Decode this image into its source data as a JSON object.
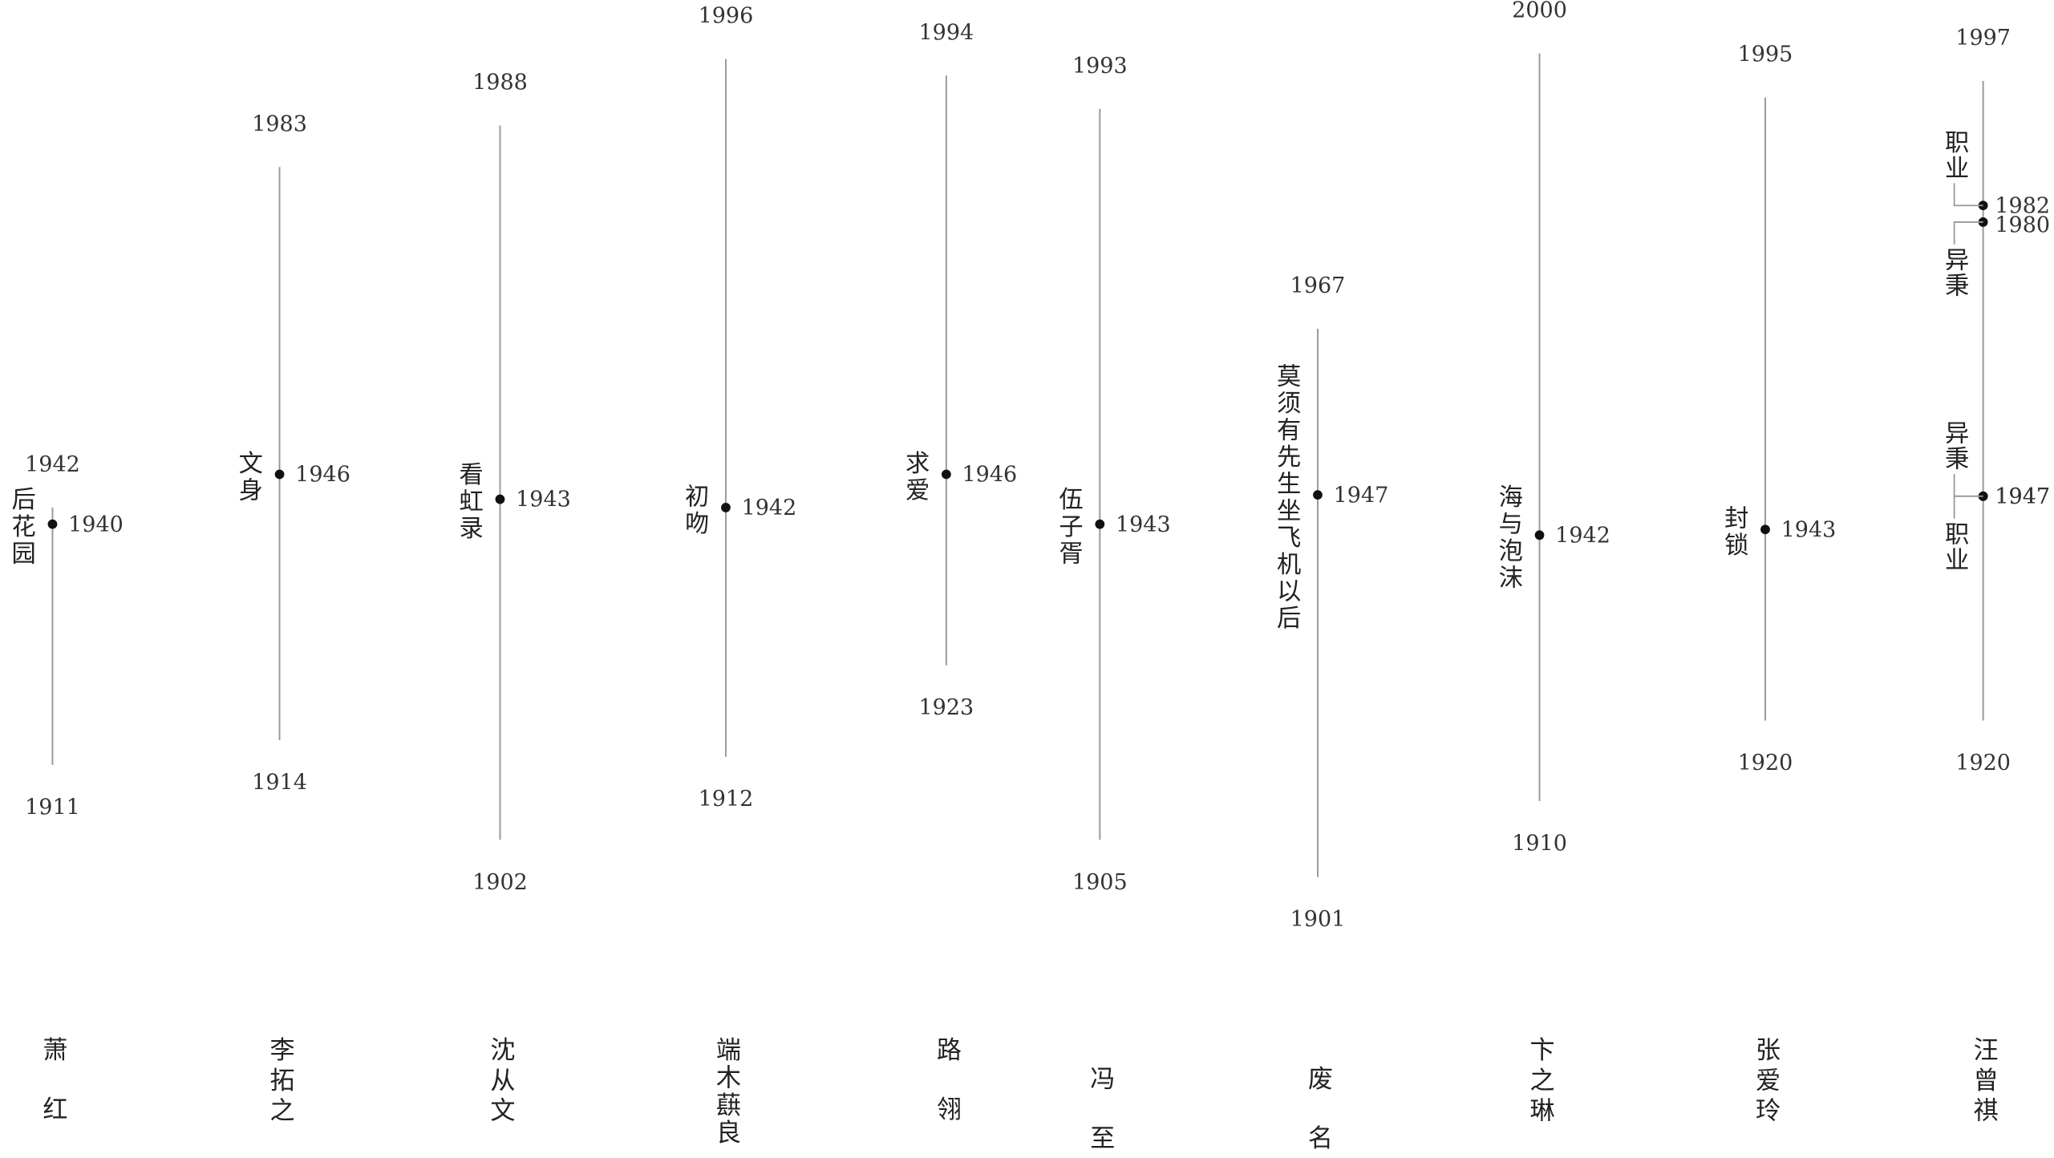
{
  "authors": [
    {
      "name": "萧红",
      "birth": 1911,
      "death": 1942,
      "works": [
        {
          "title": "后花园",
          "year": 1940
        }
      ]
    },
    {
      "name": "李拓之",
      "birth": 1914,
      "death": 1983,
      "works": [
        {
          "title": "文身",
          "year": 1946
        }
      ]
    },
    {
      "name": "沈从文",
      "birth": 1902,
      "death": 1988,
      "works": [
        {
          "title": "看虹录",
          "year": 1943
        }
      ]
    },
    {
      "name": "端木蕻良",
      "birth": 1912,
      "death": 1996,
      "works": [
        {
          "title": "初吻",
          "year": 1942
        }
      ]
    },
    {
      "name": "路翎",
      "birth": 1923,
      "death": 1994,
      "works": [
        {
          "title": "求爱",
          "year": 1946
        }
      ]
    },
    {
      "name": "冯至",
      "birth": 1905,
      "death": 1993,
      "works": [
        {
          "title": "伍子胥",
          "year": 1943
        }
      ]
    },
    {
      "name": "废名",
      "birth": 1901,
      "death": 1967,
      "works": [
        {
          "title": "莫须有先生坐飞机以后",
          "year": 1947
        }
      ]
    },
    {
      "name": "卞之琳",
      "birth": 1910,
      "death": 2000,
      "works": [
        {
          "title": "海与泡沫",
          "year": 1942
        }
      ]
    },
    {
      "name": "张爱玲",
      "birth": 1920,
      "death": 1995,
      "works": [
        {
          "title": "封锁",
          "year": 1943
        }
      ]
    },
    {
      "name": "汪曾祺",
      "birth": 1920,
      "death": 1997,
      "works": [
        {
          "title": "职业",
          "year": 1982
        },
        {
          "title": "异秉",
          "year": 1980
        },
        {
          "title": "异秉",
          "year": 1947
        },
        {
          "title": "职业",
          "year": 1947
        }
      ]
    }
  ]
}
